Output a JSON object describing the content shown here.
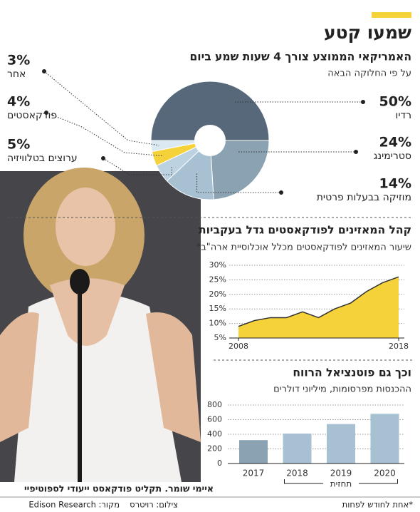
{
  "header": {
    "title": "שמעו קטע"
  },
  "chart_data": [
    {
      "type": "pie",
      "title": "האמריקאי הממוצע צורך 4 שעות שמע ביום",
      "subtitle": "על פי החלוקה הבאה",
      "categories": [
        "רדיו",
        "סטרימינג",
        "מוזיקה בבעלות פרטית",
        "ערוצים בטלוויזיה",
        "פודקאסטים",
        "אחר"
      ],
      "values": [
        50,
        24,
        14,
        5,
        4,
        3
      ],
      "value_labels": [
        "50%",
        "24%",
        "14%",
        "5%",
        "4%",
        "3%"
      ],
      "colors": [
        "#56687a",
        "#8ba2b3",
        "#a8c1d2",
        "#bcd2e0",
        "#f5d23a",
        "#dbe9f2"
      ]
    },
    {
      "type": "area",
      "title": "קהל המאזינים לפודקאסטים גדל בעקביות",
      "subtitle": "שיעור המאזינים לפודקאסטים מכלל אוכלוסיית ארה\"ב*",
      "x": [
        2008,
        2009,
        2010,
        2011,
        2012,
        2013,
        2014,
        2015,
        2016,
        2017,
        2018
      ],
      "values": [
        9,
        11,
        12,
        12,
        14,
        12,
        15,
        17,
        21,
        24,
        26
      ],
      "color": "#f5d23a",
      "xlim": [
        2008,
        2018
      ],
      "xticks": [
        2008,
        2018
      ],
      "ylim": [
        5,
        30
      ],
      "yticks": [
        {
          "value": 5,
          "label": "5%"
        },
        {
          "value": 10,
          "label": "10%"
        },
        {
          "value": 15,
          "label": "15%"
        },
        {
          "value": 20,
          "label": "20%"
        },
        {
          "value": 25,
          "label": "25%"
        },
        {
          "value": 30,
          "label": "30%"
        }
      ],
      "grid": true
    },
    {
      "type": "bar",
      "title": "וכך גם פוטנציאל הרווח",
      "subtitle": "ההכנסות מפרסומות, מיליוני דולרים",
      "categories": [
        "2017",
        "2018",
        "2019",
        "2020"
      ],
      "values": [
        320,
        410,
        540,
        680
      ],
      "colors": [
        "#8ba2b3",
        "#a8c1d2",
        "#a8c1d2",
        "#a8c1d2"
      ],
      "ylim": [
        0,
        800
      ],
      "yticks": [
        0,
        200,
        400,
        600,
        800
      ],
      "grid": true,
      "annotation": "תחזית"
    }
  ],
  "photo": {
    "caption": "איימי שומר. תקליט פודקאסט ייעודי לספוטיפיי",
    "credit": "צילום: רויטרס",
    "source": "מקור: Edison Research"
  },
  "footnote": "*אחת לחודש לפחות"
}
